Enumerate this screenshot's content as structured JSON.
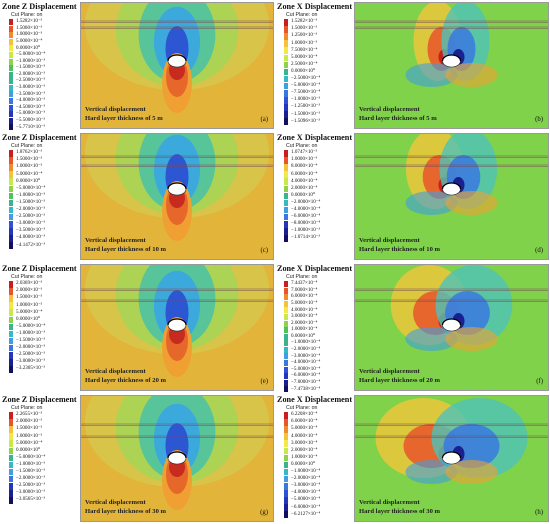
{
  "rows": [
    {
      "z": {
        "title": "Zone Z Displacement",
        "subtitle": "Cut Plane: on",
        "ticks": [
          "1.5282×10⁻³",
          "1.5000×10⁻³",
          "1.0000×10⁻³",
          "5.0000×10⁻⁴",
          "0.0000×10⁰",
          "−5.0000×10⁻⁴",
          "−1.0000×10⁻³",
          "−1.5000×10⁻³",
          "−2.0000×10⁻³",
          "−2.5000×10⁻³",
          "−3.0000×10⁻³",
          "−3.5000×10⁻³",
          "−4.0000×10⁻³",
          "−4.5000×10⁻³",
          "−5.0000×10⁻³",
          "−5.5000×10⁻³",
          "−5.7710×10⁻³"
        ],
        "caption_line1": "Vertical displacement",
        "caption_line2": "Hard layer thickness of 5 m",
        "panel_label": "(a)"
      },
      "x": {
        "title": "Zone X Displacement",
        "subtitle": "Cut Plane: on",
        "ticks": [
          "1.5282×10⁻³",
          "1.5000×10⁻³",
          "1.2500×10⁻³",
          "1.0000×10⁻³",
          "7.5000×10⁻⁴",
          "5.0000×10⁻⁴",
          "2.5000×10⁻⁴",
          "0.0000×10⁰",
          "−2.5000×10⁻⁴",
          "−5.0000×10⁻⁴",
          "−7.5000×10⁻⁴",
          "−1.0000×10⁻³",
          "−1.2500×10⁻³",
          "−1.5000×10⁻³",
          "−1.5096×10⁻³"
        ],
        "caption_line1": "Vertical displacement",
        "caption_line2": "Hard layer thickness of 5 m",
        "panel_label": "(b)"
      }
    },
    {
      "z": {
        "title": "Zone Z Displacement",
        "subtitle": "Cut Plane: on",
        "ticks": [
          "1.8762×10⁻³",
          "1.5000×10⁻³",
          "1.0000×10⁻³",
          "5.0000×10⁻⁴",
          "0.0000×10⁰",
          "−5.0000×10⁻⁴",
          "−1.0000×10⁻³",
          "−1.5000×10⁻³",
          "−2.0000×10⁻³",
          "−2.5000×10⁻³",
          "−3.0000×10⁻³",
          "−3.5000×10⁻³",
          "−4.0000×10⁻³",
          "−4.1472×10⁻³"
        ],
        "caption_line1": "Vertical displacement",
        "caption_line2": "Hard layer thickness of 10 m",
        "panel_label": "(c)"
      },
      "x": {
        "title": "Zone X Displacement",
        "subtitle": "Cut Plane: on",
        "ticks": [
          "1.0747×10⁻³",
          "1.0000×10⁻³",
          "8.0000×10⁻⁴",
          "6.0000×10⁻⁴",
          "4.0000×10⁻⁴",
          "2.0000×10⁻⁴",
          "0.0000×10⁰",
          "−2.0000×10⁻⁴",
          "−4.0000×10⁻⁴",
          "−6.0000×10⁻⁴",
          "−8.0000×10⁻⁴",
          "−1.0000×10⁻³",
          "−1.0714×10⁻³"
        ],
        "caption_line1": "Vertical displacement",
        "caption_line2": "Hard layer thickness of 10 m",
        "panel_label": "(d)"
      }
    },
    {
      "z": {
        "title": "Zone Z Displacement",
        "subtitle": "Cut Plane: on",
        "ticks": [
          "2.0369×10⁻³",
          "2.0000×10⁻³",
          "1.5000×10⁻³",
          "1.0000×10⁻³",
          "5.0000×10⁻⁴",
          "0.0000×10⁰",
          "−5.0000×10⁻⁴",
          "−1.0000×10⁻³",
          "−1.5000×10⁻³",
          "−2.0000×10⁻³",
          "−2.5000×10⁻³",
          "−3.0000×10⁻³",
          "−3.2305×10⁻³"
        ],
        "caption_line1": "Vertical displacement",
        "caption_line2": "Hard layer thickness of 20 m",
        "panel_label": "(e)"
      },
      "x": {
        "title": "Zone X Displacement",
        "subtitle": "Cut Plane: on",
        "ticks": [
          "7.4437×10⁻⁴",
          "7.0000×10⁻⁴",
          "6.0000×10⁻⁴",
          "5.0000×10⁻⁴",
          "4.0000×10⁻⁴",
          "3.0000×10⁻⁴",
          "2.0000×10⁻⁴",
          "1.0000×10⁻⁴",
          "0.0000×10⁰",
          "−1.0000×10⁻⁴",
          "−2.0000×10⁻⁴",
          "−3.0000×10⁻⁴",
          "−4.0000×10⁻⁴",
          "−5.0000×10⁻⁴",
          "−6.0000×10⁻⁴",
          "−7.0000×10⁻⁴",
          "−7.4738×10⁻⁴"
        ],
        "caption_line1": "Vertical displacement",
        "caption_line2": "Hard layer thickness of 20 m",
        "panel_label": "(f)"
      }
    },
    {
      "z": {
        "title": "Zone Z Displacement",
        "subtitle": "Cut Plane: on",
        "ticks": [
          "2.2655×10⁻³",
          "2.0000×10⁻³",
          "1.5000×10⁻³",
          "1.0000×10⁻³",
          "5.0000×10⁻⁴",
          "0.0000×10⁰",
          "−5.0000×10⁻⁴",
          "−1.0000×10⁻³",
          "−1.5000×10⁻³",
          "−2.0000×10⁻³",
          "−2.5000×10⁻³",
          "−3.0000×10⁻³",
          "−3.0565×10⁻³"
        ],
        "caption_line1": "Vertical displacement",
        "caption_line2": "Hard layer thickness of 30 m",
        "panel_label": "(g)"
      },
      "x": {
        "title": "Zone X Displacement",
        "subtitle": "Cut Plane: on",
        "ticks": [
          "6.2208×10⁻⁴",
          "6.0000×10⁻⁴",
          "5.0000×10⁻⁴",
          "4.0000×10⁻⁴",
          "3.0000×10⁻⁴",
          "2.0000×10⁻⁴",
          "1.0000×10⁻⁴",
          "0.0000×10⁰",
          "−1.0000×10⁻⁴",
          "−2.0000×10⁻⁴",
          "−3.0000×10⁻⁴",
          "−4.0000×10⁻⁴",
          "−5.0000×10⁻⁴",
          "−6.0000×10⁻⁴",
          "−6.2127×10⁻⁴"
        ],
        "caption_line1": "Vertical displacement",
        "caption_line2": "Hard layer thickness of 30 m",
        "panel_label": "(h)"
      }
    }
  ],
  "colors": {
    "z_background": "#e2b43a",
    "x_background": "#7fd24a",
    "legend_scale": [
      "#c81e1e",
      "#e8552a",
      "#f08c2e",
      "#f5c33a",
      "#f2e84a",
      "#c9e84a",
      "#8ed24e",
      "#4fc25a",
      "#39b48c",
      "#35b8c8",
      "#3f9fe0",
      "#3a78e0",
      "#2f52d8",
      "#2536b8",
      "#1a2090",
      "#120f5e"
    ]
  }
}
